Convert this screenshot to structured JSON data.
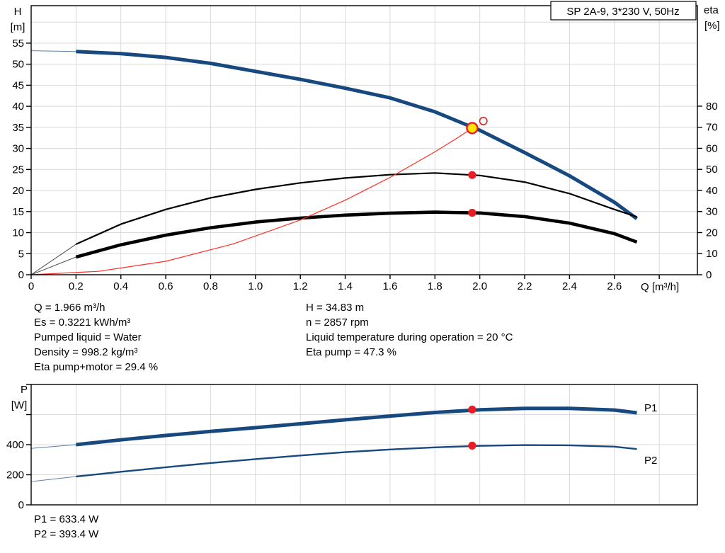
{
  "window": {
    "background": "#ffffff"
  },
  "title_box": {
    "label": "SP 2A-9, 3*230 V, 50Hz"
  },
  "colors": {
    "curve_blue": "#17497F",
    "series_label_blue": "#2a63a5",
    "black": "#000000",
    "red_line": "#ff2d26",
    "marker_red": "#ec1c24",
    "duty_yellow": "#ffe600",
    "grid": "#d9d9d9",
    "axis": "#000000"
  },
  "results": {
    "col1": [
      "Q = 1.966 m³/h",
      "Es = 0.3221 kWh/m³",
      "Pumped liquid = Water",
      "Density = 998.2 kg/m³",
      "Eta pump+motor = 29.4 %"
    ],
    "col2": [
      "H = 34.83 m",
      "n = 2857 rpm",
      "Liquid temperature during operation = 20 °C",
      "Eta pump = 47.3 %"
    ]
  },
  "power_results": {
    "lines": [
      "P1 = 633.4 W",
      "P2 = 393.4 W"
    ]
  },
  "chart_data": [
    {
      "id": "hq",
      "type": "line",
      "title": "SP 2A-9, 3*230 V, 50Hz",
      "x_axis": {
        "label": "Q [m³/h]",
        "min": 0,
        "max": 2.97,
        "tick_step": 0.2,
        "grid": true,
        "tick_labels": [
          "0",
          "0.2",
          "0.4",
          "0.6",
          "0.8",
          "1.0",
          "1.2",
          "1.4",
          "1.6",
          "1.8",
          "2.0",
          "2.2",
          "2.4",
          "2.6"
        ]
      },
      "y_left": {
        "name": "H",
        "unit": "[m]",
        "min": 0,
        "max": 63.9,
        "tick_step": 5,
        "grid": true,
        "tick_labels": [
          "0",
          "5",
          "10",
          "15",
          "20",
          "25",
          "30",
          "35",
          "40",
          "45",
          "50",
          "55"
        ],
        "unlabeled_ticks": []
      },
      "y_right": {
        "name": "eta",
        "unit": "[%]",
        "min": 0,
        "max": 127.7,
        "tick_step": 10,
        "tick_labels": [
          "0",
          "10",
          "20",
          "30",
          "40",
          "50",
          "60",
          "70",
          "80"
        ]
      },
      "series": [
        {
          "name": "pump-curve",
          "axis": "left",
          "color_key": "curve_blue",
          "width": 5,
          "thin_lead": true,
          "q": [
            0,
            0.2,
            0.4,
            0.6,
            0.8,
            1.0,
            1.2,
            1.4,
            1.6,
            1.8,
            2.0,
            2.2,
            2.4,
            2.6,
            2.7
          ],
          "v": [
            53.2,
            53.0,
            52.5,
            51.6,
            50.2,
            48.3,
            46.4,
            44.3,
            42.0,
            38.7,
            34.3,
            29.0,
            23.5,
            17.2,
            13.3
          ]
        },
        {
          "name": "eta-pump-curve",
          "axis": "right",
          "color_key": "black",
          "width": 2.2,
          "thin_lead": true,
          "q": [
            0,
            0.2,
            0.4,
            0.6,
            0.8,
            1.0,
            1.2,
            1.4,
            1.6,
            1.8,
            2.0,
            2.2,
            2.4,
            2.6,
            2.7
          ],
          "v": [
            0,
            14.5,
            24.0,
            31.0,
            36.5,
            40.5,
            43.6,
            45.9,
            47.5,
            48.3,
            47.1,
            44.0,
            38.5,
            31.0,
            27.5
          ]
        },
        {
          "name": "eta-pump-motor-curve",
          "axis": "right",
          "color_key": "black",
          "width": 4.6,
          "thin_lead": true,
          "q": [
            0,
            0.2,
            0.4,
            0.6,
            0.8,
            1.0,
            1.2,
            1.4,
            1.6,
            1.8,
            2.0,
            2.2,
            2.4,
            2.6,
            2.7
          ],
          "v": [
            0,
            8.4,
            14.2,
            18.8,
            22.3,
            25.0,
            26.9,
            28.3,
            29.2,
            29.7,
            29.3,
            27.6,
            24.5,
            19.5,
            15.5
          ]
        },
        {
          "name": "system-curve",
          "axis": "left",
          "color_key": "red_line",
          "width": 1.2,
          "thin_lead": false,
          "q": [
            0,
            0.3,
            0.6,
            0.9,
            1.2,
            1.4,
            1.6,
            1.8,
            1.9,
            1.966
          ],
          "v": [
            0,
            0.8,
            3.2,
            7.3,
            13.0,
            17.7,
            23.1,
            29.2,
            32.5,
            34.83
          ]
        }
      ],
      "markers": [
        {
          "name": "duty-point-marker",
          "style": "yellow",
          "axis": "left",
          "q": 1.966,
          "v": 34.83
        },
        {
          "name": "requested-duty-marker",
          "style": "open",
          "axis": "left",
          "q": 2.016,
          "v": 36.5
        },
        {
          "name": "eta-pump-marker",
          "style": "red",
          "axis": "right",
          "q": 1.966,
          "v": 47.3
        },
        {
          "name": "eta-pump-motor-marker",
          "style": "red",
          "axis": "right",
          "q": 1.966,
          "v": 29.4
        }
      ]
    },
    {
      "id": "power",
      "type": "line",
      "x_axis": {
        "label": "",
        "min": 0,
        "max": 2.97,
        "tick_step": 0.2,
        "grid": true,
        "tick_labels": []
      },
      "y_left": {
        "name": "P",
        "unit": "[W]",
        "min": 0,
        "max": 800,
        "tick_step": 200,
        "grid": true,
        "tick_labels": [
          "0",
          "200",
          "400"
        ],
        "unlabeled_ticks": [
          600,
          800
        ]
      },
      "series": [
        {
          "name": "p1-curve",
          "label": "P1",
          "axis": "left",
          "color_key": "curve_blue",
          "width": 5,
          "thin_lead": true,
          "q": [
            0,
            0.2,
            0.4,
            0.6,
            0.8,
            1.0,
            1.2,
            1.4,
            1.6,
            1.8,
            2.0,
            2.2,
            2.4,
            2.6,
            2.7
          ],
          "v": [
            375,
            400,
            432,
            461,
            488,
            513,
            539,
            565,
            590,
            614,
            632,
            641,
            641,
            630,
            612
          ]
        },
        {
          "name": "p2-curve",
          "label": "P2",
          "axis": "left",
          "color_key": "curve_blue",
          "width": 2.4,
          "thin_lead": true,
          "q": [
            0,
            0.2,
            0.4,
            0.6,
            0.8,
            1.0,
            1.2,
            1.4,
            1.6,
            1.8,
            2.0,
            2.2,
            2.4,
            2.6,
            2.7
          ],
          "v": [
            155,
            188,
            220,
            250,
            278,
            304,
            328,
            350,
            368,
            382,
            392,
            397,
            396,
            387,
            371
          ]
        }
      ],
      "markers": [
        {
          "name": "p1-marker",
          "style": "red",
          "axis": "left",
          "q": 1.966,
          "v": 633.4
        },
        {
          "name": "p2-marker",
          "style": "red",
          "axis": "left",
          "q": 1.966,
          "v": 393.4
        }
      ]
    }
  ]
}
